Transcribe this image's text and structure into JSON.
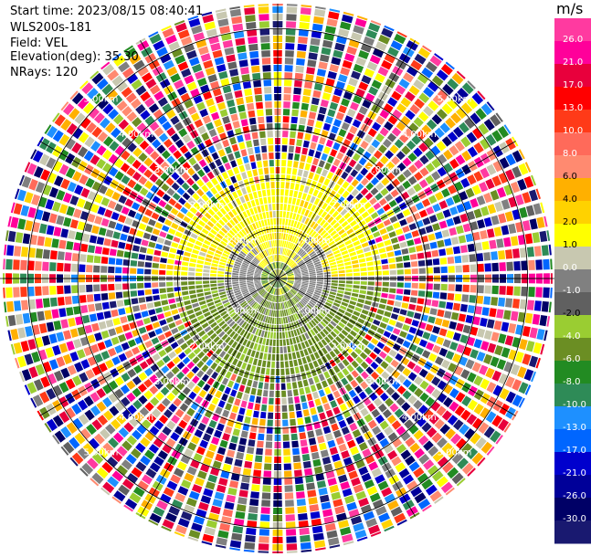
{
  "header": {
    "start_time": "Start time: 2023/08/15 08:40:41",
    "instrument": "WLS200s-181",
    "field": "Field: VEL",
    "elevation": "Elevation(deg): 35.30",
    "nrays": "NRays: 120"
  },
  "chart_data": {
    "type": "heatmap",
    "subtype": "PPI polar velocity scan",
    "field": "VEL",
    "nrays": 120,
    "elevation_deg": 35.3,
    "range_rings_km": [
      1.0,
      2.0,
      3.0,
      4.0,
      5.0
    ],
    "range_ring_labels": [
      "1.00km",
      "2.00km",
      "3.00km",
      "4.00km",
      "5.00km"
    ],
    "radial_spokes_deg": [
      0,
      30,
      60,
      90,
      120,
      150,
      180,
      210,
      240,
      270,
      300,
      330
    ],
    "velocity_pattern": {
      "toward_north_hemisphere": "positive (yellow, ~2 to 4 m/s) within ~2.2 km",
      "toward_south_hemisphere": "negative (olive, ~-2 to -4 m/s) within ~2.2 km",
      "center": "near zero (gray) within ~1 km",
      "beyond_2.5km": "noise (random colors)"
    },
    "colorbar": {
      "unit": "m/s",
      "tick_labels": [
        "26.0",
        "21.0",
        "17.0",
        "13.0",
        "10.0",
        "8.0",
        "6.0",
        "4.0",
        "2.0",
        "1.0",
        "0.0",
        "-1.0",
        "-2.0",
        "-4.0",
        "-6.0",
        "-8.0",
        "-10.0",
        "-13.0",
        "-17.0",
        "-21.0",
        "-26.0",
        "-30.0"
      ],
      "colors": [
        "#ff3aa0",
        "#ff009a",
        "#e8003c",
        "#ff0000",
        "#ff3a18",
        "#ff6a5a",
        "#ff8a70",
        "#ffb000",
        "#ffd200",
        "#ffff00",
        "#c8c8b0",
        "#808080",
        "#606060",
        "#9acd32",
        "#6b8e23",
        "#228b22",
        "#2e8b57",
        "#1e90ff",
        "#0066ff",
        "#0000cd",
        "#000099",
        "#000066",
        "#191970"
      ]
    }
  }
}
